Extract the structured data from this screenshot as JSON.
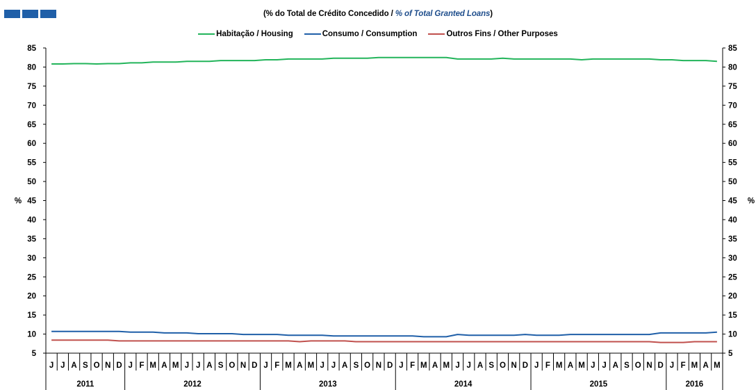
{
  "header": {
    "subtitle_open": "(% do Total de Crédito Concedido  / ",
    "subtitle_en": "% of  Total Granted Loans",
    "subtitle_close": ")"
  },
  "colors": {
    "logo": "#1f5fa8",
    "housing": "#22b45a",
    "consumption": "#1f5fa8",
    "other": "#c0504d"
  },
  "chart_data": {
    "type": "line",
    "ylabel": "%",
    "ylabel_right": "%",
    "ylim": [
      5,
      85
    ],
    "yticks": [
      5,
      10,
      15,
      20,
      25,
      30,
      35,
      40,
      45,
      50,
      55,
      60,
      65,
      70,
      75,
      80,
      85
    ],
    "categories": [
      "J",
      "J",
      "A",
      "S",
      "O",
      "N",
      "D",
      "J",
      "F",
      "M",
      "A",
      "M",
      "J",
      "J",
      "A",
      "S",
      "O",
      "N",
      "D",
      "J",
      "F",
      "M",
      "A",
      "M",
      "J",
      "J",
      "A",
      "S",
      "O",
      "N",
      "D",
      "J",
      "F",
      "M",
      "A",
      "M",
      "J",
      "J",
      "A",
      "S",
      "O",
      "N",
      "D",
      "J",
      "F",
      "M",
      "A",
      "M",
      "J",
      "J",
      "A",
      "S",
      "O",
      "N",
      "D",
      "J",
      "F",
      "M",
      "A",
      "M"
    ],
    "years": [
      {
        "label": "2011",
        "months": 7
      },
      {
        "label": "2012",
        "months": 12
      },
      {
        "label": "2013",
        "months": 12
      },
      {
        "label": "2014",
        "months": 12
      },
      {
        "label": "2015",
        "months": 12
      },
      {
        "label": "2016",
        "months": 5
      }
    ],
    "legend_position": "top",
    "grid": false,
    "series": [
      {
        "name": "Habitação / Housing",
        "color": "#22b45a",
        "values": [
          80.8,
          80.8,
          80.9,
          80.9,
          80.8,
          80.9,
          80.9,
          81.1,
          81.1,
          81.3,
          81.3,
          81.3,
          81.5,
          81.5,
          81.5,
          81.7,
          81.7,
          81.7,
          81.7,
          81.9,
          81.9,
          82.1,
          82.1,
          82.1,
          82.1,
          82.3,
          82.3,
          82.3,
          82.3,
          82.5,
          82.5,
          82.5,
          82.5,
          82.5,
          82.5,
          82.5,
          82.1,
          82.1,
          82.1,
          82.1,
          82.3,
          82.1,
          82.1,
          82.1,
          82.1,
          82.1,
          82.1,
          81.9,
          82.1,
          82.1,
          82.1,
          82.1,
          82.1,
          82.1,
          81.9,
          81.9,
          81.7,
          81.7,
          81.7,
          81.5
        ]
      },
      {
        "name": "Consumo / Consumption",
        "color": "#1f5fa8",
        "values": [
          10.7,
          10.7,
          10.7,
          10.7,
          10.7,
          10.7,
          10.7,
          10.5,
          10.5,
          10.5,
          10.3,
          10.3,
          10.3,
          10.1,
          10.1,
          10.1,
          10.1,
          9.9,
          9.9,
          9.9,
          9.9,
          9.7,
          9.7,
          9.7,
          9.7,
          9.5,
          9.5,
          9.5,
          9.5,
          9.5,
          9.5,
          9.5,
          9.5,
          9.3,
          9.3,
          9.3,
          9.9,
          9.7,
          9.7,
          9.7,
          9.7,
          9.7,
          9.9,
          9.7,
          9.7,
          9.7,
          9.9,
          9.9,
          9.9,
          9.9,
          9.9,
          9.9,
          9.9,
          9.9,
          10.3,
          10.3,
          10.3,
          10.3,
          10.3,
          10.5
        ]
      },
      {
        "name": "Outros Fins / Other Purposes",
        "color": "#c0504d",
        "values": [
          8.4,
          8.4,
          8.4,
          8.4,
          8.4,
          8.4,
          8.2,
          8.2,
          8.2,
          8.2,
          8.2,
          8.2,
          8.2,
          8.2,
          8.2,
          8.2,
          8.2,
          8.2,
          8.2,
          8.2,
          8.2,
          8.2,
          8.0,
          8.2,
          8.2,
          8.2,
          8.2,
          8.0,
          8.0,
          8.0,
          8.0,
          8.0,
          8.0,
          8.0,
          8.0,
          8.0,
          8.0,
          8.0,
          8.0,
          8.0,
          8.0,
          8.0,
          8.0,
          8.0,
          8.0,
          8.0,
          8.0,
          8.0,
          8.0,
          8.0,
          8.0,
          8.0,
          8.0,
          8.0,
          7.8,
          7.8,
          7.8,
          8.0,
          8.0,
          8.0
        ]
      }
    ]
  }
}
